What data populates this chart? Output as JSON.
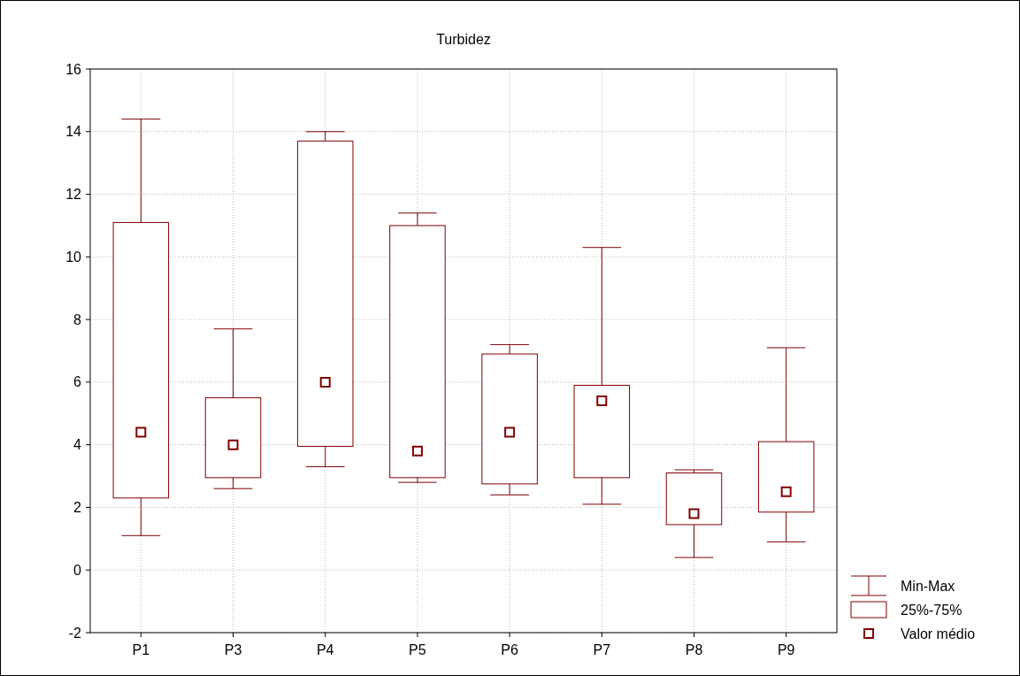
{
  "chart_data": {
    "type": "box",
    "title": "Turbidez",
    "categories": [
      "P1",
      "P3",
      "P4",
      "P5",
      "P6",
      "P7",
      "P8",
      "P9"
    ],
    "series": [
      {
        "color": "#800000",
        "boxes": [
          {
            "low": 1.1,
            "q1": 2.3,
            "q3": 11.1,
            "high": 14.4,
            "mean": 4.4
          },
          {
            "low": 2.6,
            "q1": 2.95,
            "q3": 5.5,
            "high": 7.7,
            "mean": 4.0
          },
          {
            "low": 3.3,
            "q1": 3.95,
            "q3": 13.7,
            "high": 14.0,
            "mean": 6.0
          },
          {
            "low": 2.8,
            "q1": 2.95,
            "q3": 11.0,
            "high": 11.4,
            "mean": 3.8
          },
          {
            "low": 2.4,
            "q1": 2.75,
            "q3": 6.9,
            "high": 7.2,
            "mean": 4.4
          },
          {
            "low": 2.1,
            "q1": 2.95,
            "q3": 5.9,
            "high": 10.3,
            "mean": 5.4
          },
          {
            "low": 0.4,
            "q1": 1.45,
            "q3": 3.1,
            "high": 3.2,
            "mean": 1.8
          },
          {
            "low": 0.9,
            "q1": 1.85,
            "q3": 4.1,
            "high": 7.1,
            "mean": 2.5
          }
        ]
      }
    ],
    "ylim": [
      -2,
      16
    ],
    "yticks": [
      -2,
      0,
      2,
      4,
      6,
      8,
      10,
      12,
      14,
      16
    ],
    "grid": true,
    "marker": "square",
    "annotations": [
      "Min-Max",
      "25%-75%",
      "Valor médio"
    ]
  }
}
